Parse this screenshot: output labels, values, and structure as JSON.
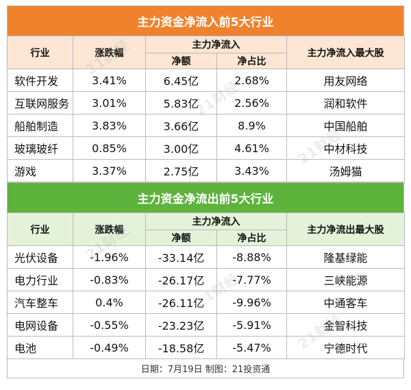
{
  "inflow": {
    "title": "主力资金净流入前5大行业",
    "headers": {
      "industry": "行业",
      "change": "涨跌幅",
      "main_net": "主力净流入",
      "net_amount": "净额",
      "net_ratio": "净占比",
      "top_stock": "主力净流入最大股"
    },
    "rows": [
      {
        "industry": "软件开发",
        "change": "3.41%",
        "net_amount": "6.45亿",
        "net_ratio": "2.68%",
        "top_stock": "用友网络"
      },
      {
        "industry": "互联网服务",
        "change": "3.01%",
        "net_amount": "5.83亿",
        "net_ratio": "2.56%",
        "top_stock": "润和软件"
      },
      {
        "industry": "船舶制造",
        "change": "3.83%",
        "net_amount": "3.66亿",
        "net_ratio": "8.9%",
        "top_stock": "中国船舶"
      },
      {
        "industry": "玻璃玻纤",
        "change": "0.85%",
        "net_amount": "3.00亿",
        "net_ratio": "4.61%",
        "top_stock": "中材科技"
      },
      {
        "industry": "游戏",
        "change": "3.37%",
        "net_amount": "2.75亿",
        "net_ratio": "3.43%",
        "top_stock": "汤姆猫"
      }
    ]
  },
  "outflow": {
    "title": "主力资金净流出前5大行业",
    "headers": {
      "industry": "行业",
      "change": "涨跌幅",
      "main_net": "主力净流入",
      "net_amount": "净额",
      "net_ratio": "净占比",
      "top_stock": "主力净流出最大股"
    },
    "rows": [
      {
        "industry": "光伏设备",
        "change": "-1.96%",
        "net_amount": "-33.14亿",
        "net_ratio": "-8.88%",
        "top_stock": "隆基绿能"
      },
      {
        "industry": "电力行业",
        "change": "-0.83%",
        "net_amount": "-26.17亿",
        "net_ratio": "-7.77%",
        "top_stock": "三峡能源"
      },
      {
        "industry": "汽车整车",
        "change": "0.4%",
        "net_amount": "-26.11亿",
        "net_ratio": "-9.96%",
        "top_stock": "中通客车"
      },
      {
        "industry": "电网设备",
        "change": "-0.55%",
        "net_amount": "-23.23亿",
        "net_ratio": "-5.91%",
        "top_stock": "金智科技"
      },
      {
        "industry": "电池",
        "change": "-0.49%",
        "net_amount": "-18.58亿",
        "net_ratio": "-5.47%",
        "top_stock": "宁德时代"
      }
    ]
  },
  "footer": "日期：7月19日 制图：21投资通",
  "watermark": "21财经",
  "colors": {
    "inflow_accent": "#f0822e",
    "outflow_accent": "#5db33c"
  }
}
